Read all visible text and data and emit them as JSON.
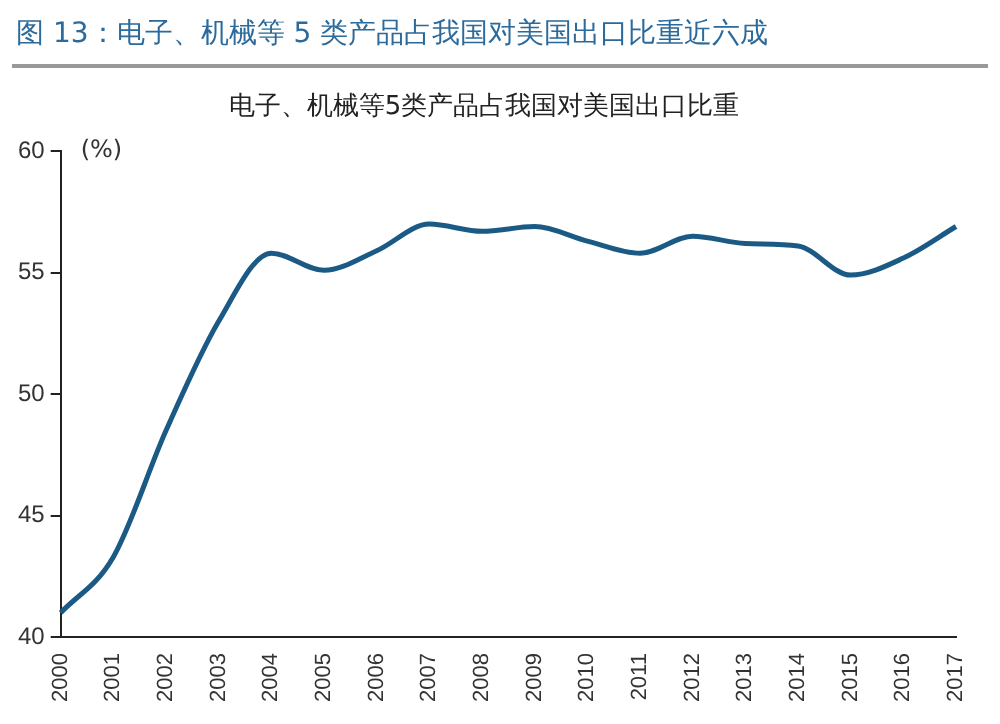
{
  "chart_data": {
    "type": "line",
    "title": "图 13：电子、机械等 5 类产品占我国对美国出口比重近六成",
    "subtitle": "电子、机械等5类产品占我国对美国出口比重",
    "ylabel": "(%)",
    "categories": [
      "2000",
      "2001",
      "2002",
      "2003",
      "2004",
      "2005",
      "2006",
      "2007",
      "2008",
      "2009",
      "2010",
      "2011",
      "2012",
      "2013",
      "2014",
      "2015",
      "2016",
      "2017"
    ],
    "series": [
      {
        "color": "#1b5a85",
        "values": [
          41,
          43.3,
          48.5,
          53,
          55.8,
          55.1,
          55.9,
          57,
          56.7,
          56.9,
          56.3,
          55.8,
          56.5,
          56.2,
          56.1,
          54.9,
          55.6,
          56.9
        ]
      }
    ],
    "ylim": [
      40,
      60
    ],
    "yticks": [
      40,
      45,
      50,
      55,
      60
    ],
    "grid": false,
    "legend": false,
    "marker": "none",
    "line_style": "solid"
  }
}
